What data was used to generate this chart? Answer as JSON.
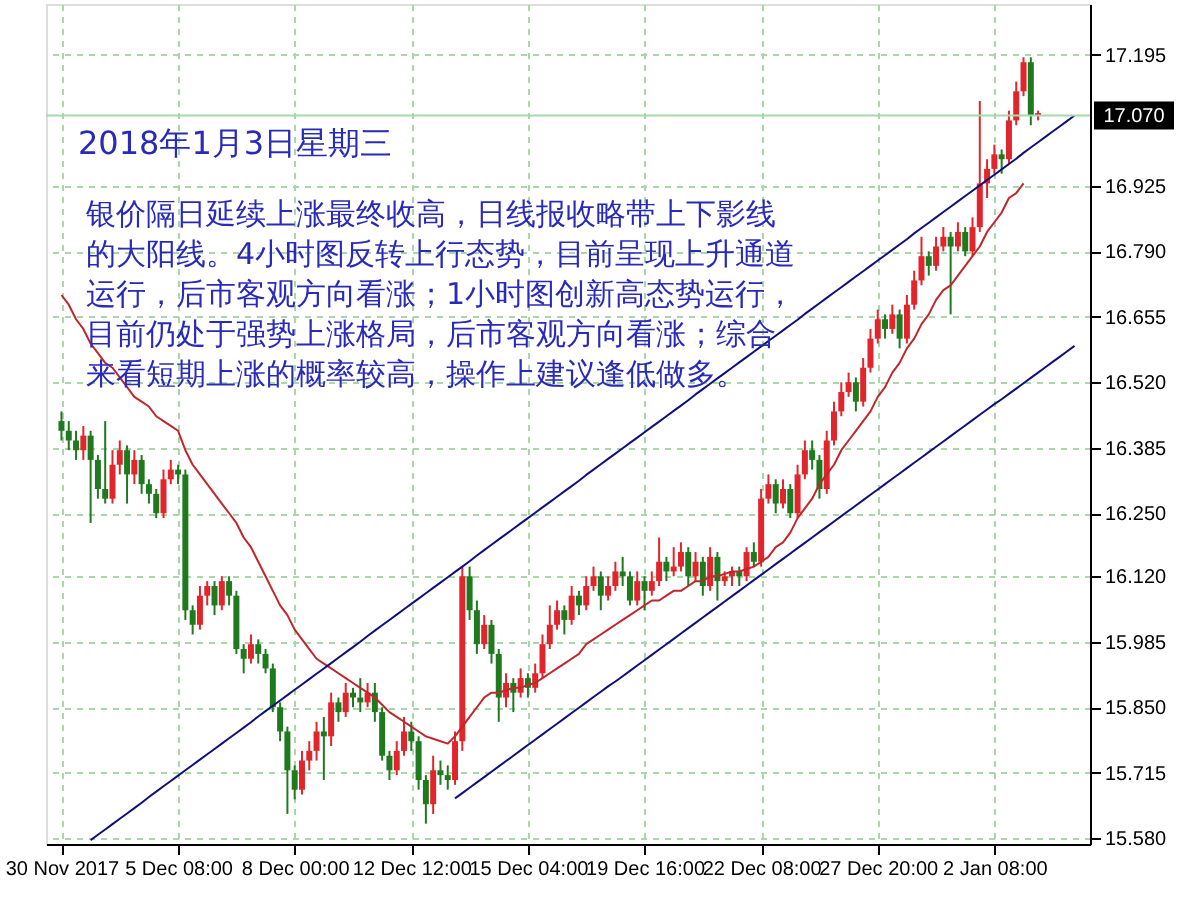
{
  "chart_data": {
    "type": "candlestick",
    "annotations": [
      "2018年1月3日星期三",
      "银价隔日延续上涨最终收高，日线报收略带上下影线",
      "的大阳线。4小时图反转上行态势，目前呈现上升通道",
      "运行，后市客观方向看涨；1小时图创新高态势运行，",
      "目前仍处于强势上涨格局，后市客观方向看涨；综合",
      "来看短期上涨的概率较高，操作上建议逢低做多。"
    ],
    "categories": [
      "30 Nov 2017",
      null,
      null,
      null,
      null,
      null,
      null,
      null,
      null,
      null,
      null,
      null,
      null,
      null,
      null,
      null,
      "5 Dec 08:00",
      null,
      null,
      null,
      null,
      null,
      null,
      null,
      null,
      null,
      null,
      null,
      null,
      null,
      null,
      null,
      "8 Dec 00:00",
      null,
      null,
      null,
      null,
      null,
      null,
      null,
      null,
      null,
      null,
      null,
      null,
      null,
      null,
      null,
      "12 Dec 12:00",
      null,
      null,
      null,
      null,
      null,
      null,
      null,
      null,
      null,
      null,
      null,
      null,
      null,
      null,
      null,
      "15 Dec 04:00",
      null,
      null,
      null,
      null,
      null,
      null,
      null,
      null,
      null,
      null,
      null,
      null,
      null,
      null,
      null,
      "19 Dec 16:00",
      null,
      null,
      null,
      null,
      null,
      null,
      null,
      null,
      null,
      null,
      null,
      null,
      null,
      null,
      null,
      "22 Dec 08:00",
      null,
      null,
      null,
      null,
      null,
      null,
      null,
      null,
      null,
      null,
      null,
      null,
      null,
      null,
      null,
      "27 Dec 20:00",
      null,
      null,
      null,
      null,
      null,
      null,
      null,
      null,
      null,
      null,
      null,
      null,
      null,
      null,
      null,
      "2 Jan 08:00",
      null,
      null,
      null,
      null,
      null,
      null,
      null,
      null,
      null,
      null,
      null
    ],
    "ohlc": [
      [
        16.44,
        16.46,
        16.4,
        16.42
      ],
      [
        16.42,
        16.44,
        16.38,
        16.4
      ],
      [
        16.4,
        16.42,
        16.36,
        16.38
      ],
      [
        16.38,
        16.43,
        16.36,
        16.41
      ],
      [
        16.41,
        16.42,
        16.23,
        16.36
      ],
      [
        16.36,
        16.37,
        16.28,
        16.3
      ],
      [
        16.3,
        16.44,
        16.27,
        16.28
      ],
      [
        16.28,
        16.38,
        16.27,
        16.35
      ],
      [
        16.35,
        16.4,
        16.33,
        16.38
      ],
      [
        16.38,
        16.39,
        16.27,
        16.33
      ],
      [
        16.33,
        16.38,
        16.31,
        16.36
      ],
      [
        16.36,
        16.37,
        16.29,
        16.31
      ],
      [
        16.31,
        16.32,
        16.27,
        16.29
      ],
      [
        16.29,
        16.3,
        16.24,
        16.25
      ],
      [
        16.25,
        16.34,
        16.24,
        16.32
      ],
      [
        16.32,
        16.36,
        16.31,
        16.34
      ],
      [
        16.34,
        16.35,
        16.31,
        16.33
      ],
      [
        16.33,
        16.34,
        16.03,
        16.05
      ],
      [
        16.05,
        16.06,
        16.0,
        16.02
      ],
      [
        16.02,
        16.1,
        16.01,
        16.08
      ],
      [
        16.08,
        16.11,
        16.06,
        16.1
      ],
      [
        16.1,
        16.11,
        16.04,
        16.06
      ],
      [
        16.06,
        16.12,
        16.05,
        16.11
      ],
      [
        16.11,
        16.12,
        16.06,
        16.08
      ],
      [
        16.08,
        16.09,
        15.96,
        15.97
      ],
      [
        15.97,
        15.98,
        15.92,
        15.95
      ],
      [
        15.95,
        16.0,
        15.94,
        15.98
      ],
      [
        15.98,
        15.99,
        15.94,
        15.96
      ],
      [
        15.96,
        15.97,
        15.92,
        15.93
      ],
      [
        15.93,
        15.94,
        15.84,
        15.85
      ],
      [
        15.85,
        15.86,
        15.78,
        15.8
      ],
      [
        15.8,
        15.81,
        15.63,
        15.72
      ],
      [
        15.72,
        15.73,
        15.66,
        15.68
      ],
      [
        15.68,
        15.76,
        15.67,
        15.74
      ],
      [
        15.74,
        15.78,
        15.72,
        15.76
      ],
      [
        15.76,
        15.82,
        15.74,
        15.8
      ],
      [
        15.8,
        15.83,
        15.7,
        15.79
      ],
      [
        15.79,
        15.88,
        15.77,
        15.86
      ],
      [
        15.86,
        15.87,
        15.82,
        15.84
      ],
      [
        15.84,
        15.9,
        15.83,
        15.88
      ],
      [
        15.88,
        15.89,
        15.85,
        15.87
      ],
      [
        15.87,
        15.91,
        15.84,
        15.86
      ],
      [
        15.86,
        15.9,
        15.85,
        15.88
      ],
      [
        15.88,
        15.9,
        15.82,
        15.84
      ],
      [
        15.84,
        15.85,
        15.74,
        15.75
      ],
      [
        15.75,
        15.76,
        15.7,
        15.72
      ],
      [
        15.72,
        15.78,
        15.71,
        15.76
      ],
      [
        15.76,
        15.83,
        15.75,
        15.8
      ],
      [
        15.8,
        15.82,
        15.76,
        15.78
      ],
      [
        15.78,
        15.79,
        15.68,
        15.7
      ],
      [
        15.7,
        15.71,
        15.61,
        15.65
      ],
      [
        15.65,
        15.75,
        15.63,
        15.72
      ],
      [
        15.72,
        15.74,
        15.69,
        15.71
      ],
      [
        15.71,
        15.73,
        15.68,
        15.7
      ],
      [
        15.7,
        15.8,
        15.69,
        15.78
      ],
      [
        15.78,
        16.14,
        15.76,
        16.12
      ],
      [
        16.12,
        16.14,
        16.03,
        16.05
      ],
      [
        16.05,
        16.07,
        15.96,
        15.98
      ],
      [
        15.98,
        16.04,
        15.97,
        16.02
      ],
      [
        16.02,
        16.03,
        15.94,
        15.96
      ],
      [
        15.96,
        15.97,
        15.82,
        15.87
      ],
      [
        15.87,
        15.92,
        15.85,
        15.9
      ],
      [
        15.9,
        15.91,
        15.84,
        15.88
      ],
      [
        15.88,
        15.93,
        15.87,
        15.91
      ],
      [
        15.91,
        15.92,
        15.87,
        15.89
      ],
      [
        15.89,
        15.94,
        15.88,
        15.92
      ],
      [
        15.92,
        16.0,
        15.91,
        15.98
      ],
      [
        15.98,
        16.06,
        15.97,
        16.02
      ],
      [
        16.02,
        16.07,
        16.01,
        16.05
      ],
      [
        16.05,
        16.06,
        16.0,
        16.03
      ],
      [
        16.03,
        16.1,
        16.02,
        16.08
      ],
      [
        16.08,
        16.09,
        16.04,
        16.06
      ],
      [
        16.06,
        16.12,
        16.05,
        16.1
      ],
      [
        16.1,
        16.14,
        16.09,
        16.12
      ],
      [
        16.12,
        16.13,
        16.05,
        16.08
      ],
      [
        16.08,
        16.12,
        16.07,
        16.1
      ],
      [
        16.1,
        16.15,
        16.09,
        16.13
      ],
      [
        16.13,
        16.16,
        16.1,
        16.12
      ],
      [
        16.12,
        16.13,
        16.06,
        16.07
      ],
      [
        16.07,
        16.13,
        16.06,
        16.11
      ],
      [
        16.11,
        16.12,
        16.05,
        16.09
      ],
      [
        16.09,
        16.13,
        16.08,
        16.11
      ],
      [
        16.11,
        16.2,
        16.1,
        16.15
      ],
      [
        16.15,
        16.16,
        16.11,
        16.13
      ],
      [
        16.13,
        16.18,
        16.12,
        16.14
      ],
      [
        16.14,
        16.19,
        16.13,
        16.17
      ],
      [
        16.17,
        16.18,
        16.1,
        16.12
      ],
      [
        16.12,
        16.17,
        16.11,
        16.15
      ],
      [
        16.15,
        16.16,
        16.08,
        16.1
      ],
      [
        16.1,
        16.18,
        16.09,
        16.16
      ],
      [
        16.16,
        16.17,
        16.07,
        16.11
      ],
      [
        16.11,
        16.13,
        16.1,
        16.12
      ],
      [
        16.12,
        16.14,
        16.1,
        16.13
      ],
      [
        16.13,
        16.14,
        16.1,
        16.12
      ],
      [
        16.12,
        16.18,
        16.11,
        16.17
      ],
      [
        16.17,
        16.19,
        16.14,
        16.15
      ],
      [
        16.15,
        16.3,
        16.14,
        16.28
      ],
      [
        16.28,
        16.33,
        16.27,
        16.31
      ],
      [
        16.31,
        16.32,
        16.25,
        16.27
      ],
      [
        16.27,
        16.32,
        16.26,
        16.3
      ],
      [
        16.3,
        16.31,
        16.24,
        16.25
      ],
      [
        16.25,
        16.35,
        16.24,
        16.33
      ],
      [
        16.33,
        16.4,
        16.32,
        16.38
      ],
      [
        16.38,
        16.4,
        16.34,
        16.36
      ],
      [
        16.36,
        16.37,
        16.28,
        16.3
      ],
      [
        16.3,
        16.42,
        16.29,
        16.4
      ],
      [
        16.4,
        16.48,
        16.39,
        16.46
      ],
      [
        16.46,
        16.52,
        16.45,
        16.5
      ],
      [
        16.5,
        16.54,
        16.49,
        16.52
      ],
      [
        16.52,
        16.53,
        16.46,
        16.48
      ],
      [
        16.48,
        16.57,
        16.47,
        16.55
      ],
      [
        16.55,
        16.63,
        16.54,
        16.61
      ],
      [
        16.61,
        16.67,
        16.6,
        16.65
      ],
      [
        16.65,
        16.66,
        16.61,
        16.63
      ],
      [
        16.63,
        16.68,
        16.62,
        16.66
      ],
      [
        16.66,
        16.67,
        16.59,
        16.61
      ],
      [
        16.61,
        16.7,
        16.6,
        16.68
      ],
      [
        16.68,
        16.75,
        16.67,
        16.73
      ],
      [
        16.73,
        16.82,
        16.72,
        16.78
      ],
      [
        16.78,
        16.79,
        16.74,
        16.76
      ],
      [
        16.76,
        16.82,
        16.75,
        16.8
      ],
      [
        16.8,
        16.84,
        16.79,
        16.82
      ],
      [
        16.82,
        16.83,
        16.66,
        16.8
      ],
      [
        16.8,
        16.85,
        16.79,
        16.83
      ],
      [
        16.83,
        16.84,
        16.78,
        16.79
      ],
      [
        16.79,
        16.86,
        16.78,
        16.84
      ],
      [
        16.84,
        17.1,
        16.83,
        16.93
      ],
      [
        16.93,
        16.98,
        16.9,
        16.96
      ],
      [
        16.96,
        17.01,
        16.95,
        16.99
      ],
      [
        16.99,
        17.0,
        16.95,
        16.98
      ],
      [
        16.98,
        17.08,
        16.97,
        17.06
      ],
      [
        17.06,
        17.14,
        17.05,
        17.12
      ],
      [
        17.12,
        17.19,
        17.11,
        17.18
      ],
      [
        17.18,
        17.19,
        17.05,
        17.07
      ],
      [
        17.07,
        17.08,
        17.06,
        17.075
      ],
      null,
      null,
      null,
      null,
      null
    ],
    "series": [
      {
        "type": "line",
        "color": "#c0262c",
        "values": [
          16.7,
          16.68,
          16.65,
          16.63,
          16.6,
          16.58,
          16.56,
          16.55,
          16.53,
          16.51,
          16.49,
          16.48,
          16.47,
          16.45,
          16.44,
          16.43,
          16.42,
          16.38,
          16.35,
          16.33,
          16.31,
          16.29,
          16.27,
          16.25,
          16.23,
          16.2,
          16.18,
          16.15,
          16.12,
          16.09,
          16.06,
          16.04,
          16.01,
          15.99,
          15.97,
          15.95,
          15.94,
          15.93,
          15.92,
          15.91,
          15.9,
          15.89,
          15.88,
          15.87,
          15.855,
          15.84,
          15.83,
          15.82,
          15.81,
          15.8,
          15.79,
          15.785,
          15.78,
          15.775,
          15.79,
          15.81,
          15.83,
          15.85,
          15.87,
          15.88,
          15.88,
          15.885,
          15.89,
          15.89,
          15.896,
          15.9,
          15.91,
          15.92,
          15.93,
          15.94,
          15.95,
          15.96,
          15.98,
          15.99,
          16.0,
          16.01,
          16.02,
          16.03,
          16.04,
          16.05,
          16.06,
          16.07,
          16.07,
          16.08,
          16.09,
          16.09,
          16.1,
          16.11,
          16.11,
          16.12,
          16.12,
          16.125,
          16.13,
          16.13,
          16.135,
          16.14,
          16.15,
          16.16,
          16.18,
          16.19,
          16.21,
          16.24,
          16.26,
          16.28,
          16.31,
          16.33,
          16.35,
          16.38,
          16.4,
          16.42,
          16.44,
          16.46,
          16.49,
          16.51,
          16.54,
          16.56,
          16.59,
          16.61,
          16.64,
          16.66,
          16.69,
          16.71,
          16.72,
          16.74,
          16.76,
          16.78,
          16.8,
          16.83,
          16.85,
          16.87,
          16.9,
          16.91,
          16.93,
          null,
          null,
          null,
          null,
          null,
          null,
          null
        ]
      },
      {
        "type": "line",
        "color": "#10107a",
        "values": [
          null,
          null,
          null,
          null,
          15.576,
          15.587,
          15.598,
          15.609,
          15.62,
          15.631,
          15.642,
          15.653,
          15.665,
          15.676,
          15.687,
          15.698,
          15.709,
          15.72,
          15.731,
          15.742,
          15.753,
          15.764,
          15.775,
          15.786,
          15.797,
          15.808,
          15.819,
          15.831,
          15.842,
          15.853,
          15.864,
          15.875,
          15.886,
          15.897,
          15.908,
          15.919,
          15.93,
          15.941,
          15.952,
          15.963,
          15.974,
          15.985,
          15.997,
          16.008,
          16.019,
          16.03,
          16.041,
          16.052,
          16.063,
          16.074,
          16.085,
          16.096,
          16.107,
          16.118,
          16.129,
          16.14,
          16.151,
          16.163,
          16.174,
          16.185,
          16.196,
          16.207,
          16.218,
          16.229,
          16.24,
          16.251,
          16.262,
          16.273,
          16.284,
          16.295,
          16.306,
          16.317,
          16.329,
          16.34,
          16.351,
          16.362,
          16.373,
          16.384,
          16.395,
          16.406,
          16.417,
          16.428,
          16.439,
          16.45,
          16.461,
          16.472,
          16.483,
          16.495,
          16.506,
          16.517,
          16.528,
          16.539,
          16.55,
          16.561,
          16.572,
          16.583,
          16.594,
          16.605,
          16.616,
          16.627,
          16.638,
          16.649,
          16.661,
          16.672,
          16.683,
          16.694,
          16.705,
          16.716,
          16.727,
          16.738,
          16.749,
          16.76,
          16.771,
          16.782,
          16.793,
          16.804,
          16.815,
          16.827,
          16.838,
          16.849,
          16.86,
          16.871,
          16.882,
          16.893,
          16.904,
          16.915,
          16.926,
          16.937,
          16.948,
          16.959,
          16.97,
          16.981,
          16.993,
          17.004,
          17.015,
          17.026,
          17.037,
          17.048,
          17.059,
          17.07
        ]
      },
      {
        "type": "line",
        "color": "#10107a",
        "values": [
          null,
          null,
          null,
          null,
          null,
          null,
          null,
          null,
          null,
          null,
          null,
          null,
          null,
          null,
          null,
          null,
          null,
          null,
          null,
          null,
          null,
          null,
          null,
          null,
          null,
          null,
          null,
          null,
          null,
          null,
          null,
          null,
          null,
          null,
          null,
          null,
          null,
          null,
          null,
          null,
          null,
          null,
          null,
          null,
          null,
          null,
          null,
          null,
          null,
          null,
          null,
          null,
          null,
          null,
          15.662,
          15.673,
          15.684,
          15.695,
          15.706,
          15.717,
          15.728,
          15.739,
          15.75,
          15.761,
          15.772,
          15.783,
          15.794,
          15.805,
          15.816,
          15.827,
          15.838,
          15.849,
          15.86,
          15.871,
          15.882,
          15.893,
          15.903,
          15.914,
          15.925,
          15.936,
          15.947,
          15.958,
          15.969,
          15.98,
          15.991,
          16.002,
          16.013,
          16.024,
          16.035,
          16.046,
          16.057,
          16.068,
          16.079,
          16.09,
          16.101,
          16.112,
          16.123,
          16.134,
          16.145,
          16.156,
          16.167,
          16.178,
          16.189,
          16.2,
          16.211,
          16.222,
          16.233,
          16.244,
          16.255,
          16.266,
          16.277,
          16.288,
          16.299,
          16.31,
          16.321,
          16.332,
          16.343,
          16.354,
          16.365,
          16.376,
          16.387,
          16.398,
          16.409,
          16.42,
          16.431,
          16.442,
          16.453,
          16.464,
          16.475,
          16.485,
          16.496,
          16.507,
          16.518,
          16.529,
          16.54,
          16.551,
          16.562,
          16.573,
          16.584,
          16.595
        ]
      }
    ],
    "ref_lines": [
      {
        "axis": "y",
        "value": 17.07,
        "label": "17.070"
      }
    ],
    "ylim": [
      15.568,
      17.3
    ],
    "yticks": [
      {
        "value": 15.58,
        "label": "15.580"
      },
      {
        "value": 15.715,
        "label": "15.715"
      },
      {
        "value": 15.85,
        "label": "15.850"
      },
      {
        "value": 15.985,
        "label": "15.985"
      },
      {
        "value": 16.12,
        "label": "16.120"
      },
      {
        "value": 16.25,
        "label": "16.250"
      },
      {
        "value": 16.385,
        "label": "16.385"
      },
      {
        "value": 16.52,
        "label": "16.520"
      },
      {
        "value": 16.655,
        "label": "16.655"
      },
      {
        "value": 16.79,
        "label": "16.790"
      },
      {
        "value": 16.925,
        "label": "16.925"
      },
      {
        "value": 17.195,
        "label": "17.195"
      }
    ],
    "grid": true
  }
}
